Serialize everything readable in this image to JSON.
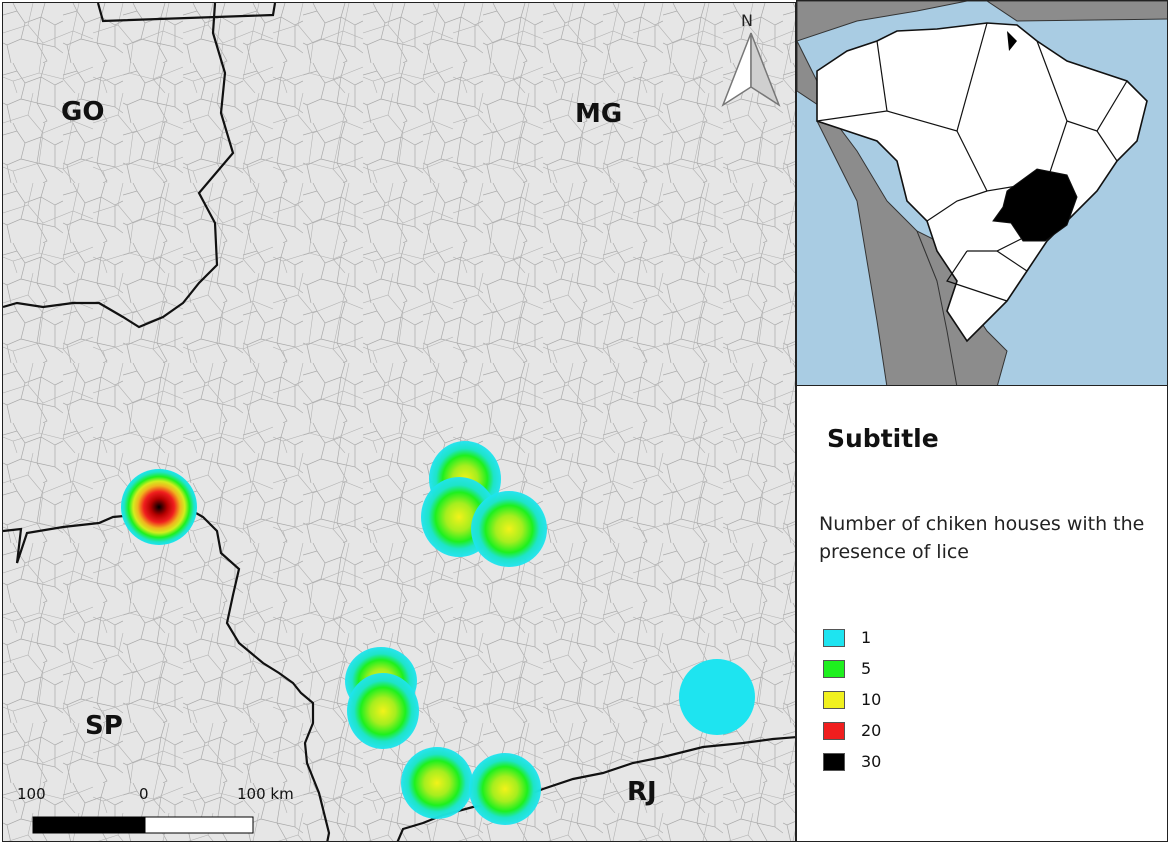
{
  "map": {
    "state_labels": {
      "go": "GO",
      "mg": "MG",
      "sp": "SP",
      "rj": "RJ"
    },
    "north_arrow": "N",
    "scale_bar": {
      "left": "100",
      "middle": "0",
      "right": "100 km"
    },
    "icons": {
      "north": "north-arrow-icon"
    }
  },
  "legend": {
    "title": "Subtitle",
    "description": "Number of chiken houses with the presence of lice",
    "items": [
      {
        "label": "1",
        "color": "#1ee4f0"
      },
      {
        "label": "5",
        "color": "#1ef01e"
      },
      {
        "label": "10",
        "color": "#f0f01e"
      },
      {
        "label": "20",
        "color": "#f01e1e"
      },
      {
        "label": "30",
        "color": "#000000"
      }
    ]
  },
  "colors": {
    "land": "#e6e6e6",
    "ocean": "#a9cce3",
    "south_america_other": "#8c8c8c",
    "brazil_states": "#ffffff",
    "highlight": "#000000"
  }
}
